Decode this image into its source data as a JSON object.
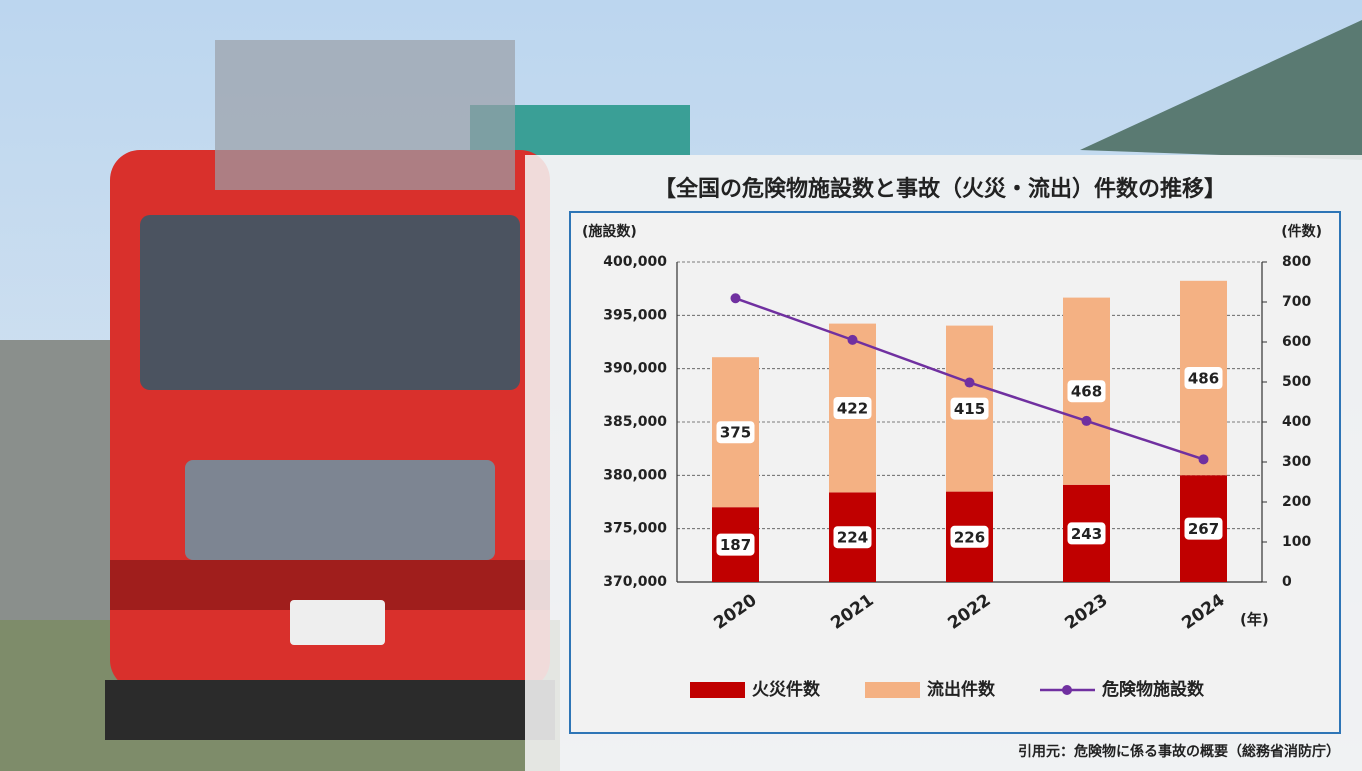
{
  "chart_data": {
    "type": "bar",
    "title": "【全国の危険物施設数と事故（火災・流出）件数の推移】",
    "y_axis_label": "(施設数)",
    "y2_axis_label": "(件数)",
    "x_axis_label": "(年)",
    "source": "引用元：危険物に係る事故の概要（総務省消防庁）",
    "categories": [
      "2020",
      "2021",
      "2022",
      "2023",
      "2024"
    ],
    "stacked": true,
    "grid": true,
    "legend": "bottom",
    "series": [
      {
        "name": "火災件数",
        "color": "#c00000",
        "axis": "y2",
        "values": [
          187,
          224,
          226,
          243,
          267
        ]
      },
      {
        "name": "流出件数",
        "color": "#f4b183",
        "axis": "y2",
        "values": [
          375,
          422,
          415,
          468,
          486
        ]
      },
      {
        "name": "危険物施設数",
        "color": "#7030a0",
        "type": "line",
        "values": [
          396600,
          392700,
          388700,
          385100,
          381500
        ]
      }
    ],
    "ylim": [
      370000,
      400000
    ],
    "yticks": [
      {
        "value": 370000,
        "label": "370,000"
      },
      {
        "value": 375000,
        "label": "375,000"
      },
      {
        "value": 380000,
        "label": "380,000"
      },
      {
        "value": 385000,
        "label": "385,000"
      },
      {
        "value": 390000,
        "label": "390,000"
      },
      {
        "value": 395000,
        "label": "395,000"
      },
      {
        "value": 400000,
        "label": "400,000"
      }
    ],
    "y2lim": [
      0,
      800
    ],
    "y2ticks": [
      0,
      100,
      200,
      300,
      400,
      500,
      600,
      700,
      800
    ]
  }
}
